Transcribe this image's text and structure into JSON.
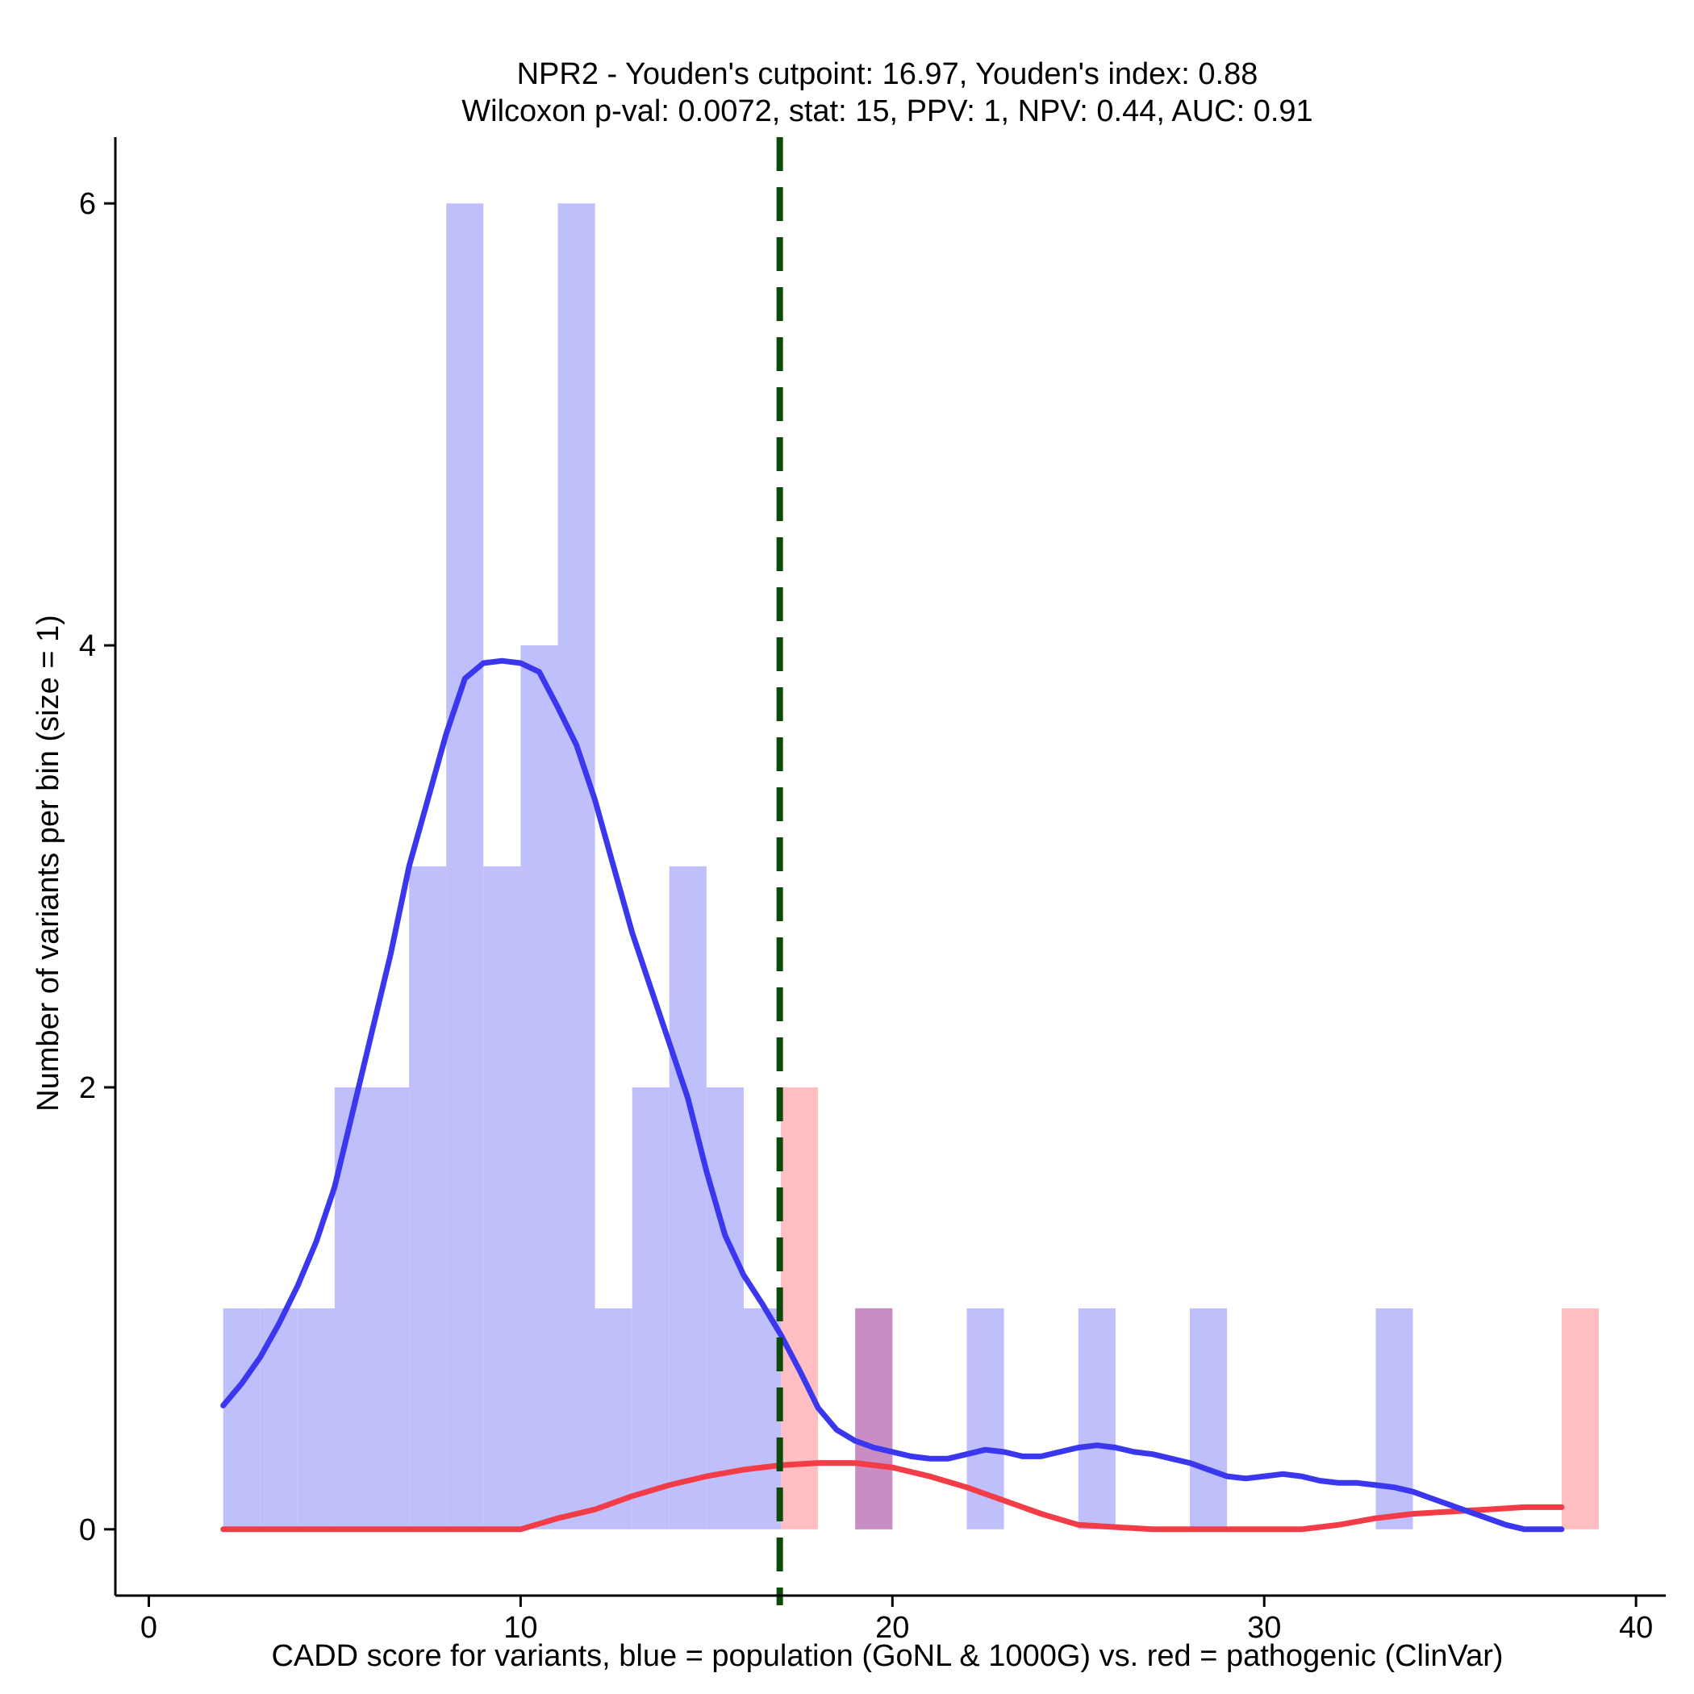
{
  "chart_data": {
    "type": "histogram",
    "title_line1": "NPR2 - Youden's cutpoint: 16.97, Youden's index: 0.88",
    "title_line2": "Wilcoxon p-val: 0.0072, stat: 15, PPV: 1, NPV: 0.44, AUC: 0.91",
    "xlabel": "CADD score for variants, blue = population (GoNL & 1000G) vs. red = pathogenic (ClinVar)",
    "ylabel": "Number of variants per bin (size = 1)",
    "xlim": [
      -0.9,
      40.8
    ],
    "ylim": [
      -0.3,
      6.3
    ],
    "x_ticks": [
      0,
      10,
      20,
      30,
      40
    ],
    "y_ticks": [
      0,
      2,
      4,
      6
    ],
    "cutpoint": 16.97,
    "bin_size": 1,
    "colors": {
      "population_bar": "#bfbffc",
      "pathogenic_bar": "#ffbfc2",
      "overlap_bar": "#c88dc2",
      "population_line": "#3a37ee",
      "pathogenic_line": "#f23d48",
      "cutpoint_line": "#0b4a0b"
    },
    "series": [
      {
        "name": "population (GoNL & 1000G)",
        "bins": [
          {
            "start": 2,
            "count": 1
          },
          {
            "start": 3,
            "count": 1
          },
          {
            "start": 4,
            "count": 1
          },
          {
            "start": 5,
            "count": 2
          },
          {
            "start": 6,
            "count": 2
          },
          {
            "start": 7,
            "count": 3
          },
          {
            "start": 8,
            "count": 6
          },
          {
            "start": 9,
            "count": 3
          },
          {
            "start": 10,
            "count": 4
          },
          {
            "start": 11,
            "count": 6
          },
          {
            "start": 12,
            "count": 1
          },
          {
            "start": 13,
            "count": 2
          },
          {
            "start": 14,
            "count": 3
          },
          {
            "start": 15,
            "count": 2
          },
          {
            "start": 16,
            "count": 1
          },
          {
            "start": 19,
            "count": 1
          },
          {
            "start": 22,
            "count": 1
          },
          {
            "start": 25,
            "count": 1
          },
          {
            "start": 28,
            "count": 1
          },
          {
            "start": 33,
            "count": 1
          }
        ],
        "density_x": [
          2,
          2.5,
          3,
          3.5,
          4,
          4.5,
          5,
          5.5,
          6,
          6.5,
          7,
          7.5,
          8,
          8.5,
          9,
          9.5,
          10,
          10.5,
          11,
          11.5,
          12,
          12.5,
          13,
          13.5,
          14,
          14.5,
          15,
          15.5,
          16,
          16.5,
          17,
          17.5,
          18,
          18.5,
          19,
          19.5,
          20,
          20.5,
          21,
          21.5,
          22,
          22.5,
          23,
          23.5,
          24,
          24.5,
          25,
          25.5,
          26,
          26.5,
          27,
          27.5,
          28,
          28.5,
          29,
          29.5,
          30,
          30.5,
          31,
          31.5,
          32,
          32.5,
          33,
          33.5,
          34,
          34.5,
          35,
          35.5,
          36,
          36.5,
          37,
          37.5,
          38
        ],
        "density_y": [
          0.56,
          0.66,
          0.78,
          0.93,
          1.1,
          1.3,
          1.55,
          1.9,
          2.25,
          2.6,
          3.0,
          3.3,
          3.6,
          3.85,
          3.92,
          3.93,
          3.92,
          3.88,
          3.72,
          3.55,
          3.3,
          3.0,
          2.7,
          2.45,
          2.2,
          1.95,
          1.62,
          1.33,
          1.15,
          1.02,
          0.88,
          0.72,
          0.55,
          0.45,
          0.4,
          0.37,
          0.35,
          0.33,
          0.32,
          0.32,
          0.34,
          0.36,
          0.35,
          0.33,
          0.33,
          0.35,
          0.37,
          0.38,
          0.37,
          0.35,
          0.34,
          0.32,
          0.3,
          0.27,
          0.24,
          0.23,
          0.24,
          0.25,
          0.24,
          0.22,
          0.21,
          0.21,
          0.2,
          0.19,
          0.17,
          0.14,
          0.11,
          0.08,
          0.05,
          0.02,
          0.0,
          0.0,
          0.0
        ]
      },
      {
        "name": "pathogenic (ClinVar)",
        "bins": [
          {
            "start": 17,
            "count": 2
          },
          {
            "start": 19,
            "count": 1
          },
          {
            "start": 38,
            "count": 1
          }
        ],
        "density_x": [
          2,
          4,
          6,
          8,
          9,
          10,
          11,
          12,
          13,
          14,
          15,
          16,
          17,
          18,
          19,
          20,
          21,
          22,
          23,
          24,
          25,
          26,
          27,
          28,
          29,
          30,
          31,
          32,
          33,
          34,
          35,
          36,
          37,
          38
        ],
        "density_y": [
          0.0,
          0.0,
          0.0,
          0.0,
          0.0,
          0.0,
          0.05,
          0.09,
          0.15,
          0.2,
          0.24,
          0.27,
          0.29,
          0.3,
          0.3,
          0.28,
          0.24,
          0.19,
          0.13,
          0.07,
          0.02,
          0.01,
          0.0,
          0.0,
          0.0,
          0.0,
          0.0,
          0.02,
          0.05,
          0.07,
          0.08,
          0.09,
          0.1,
          0.1
        ]
      }
    ]
  }
}
